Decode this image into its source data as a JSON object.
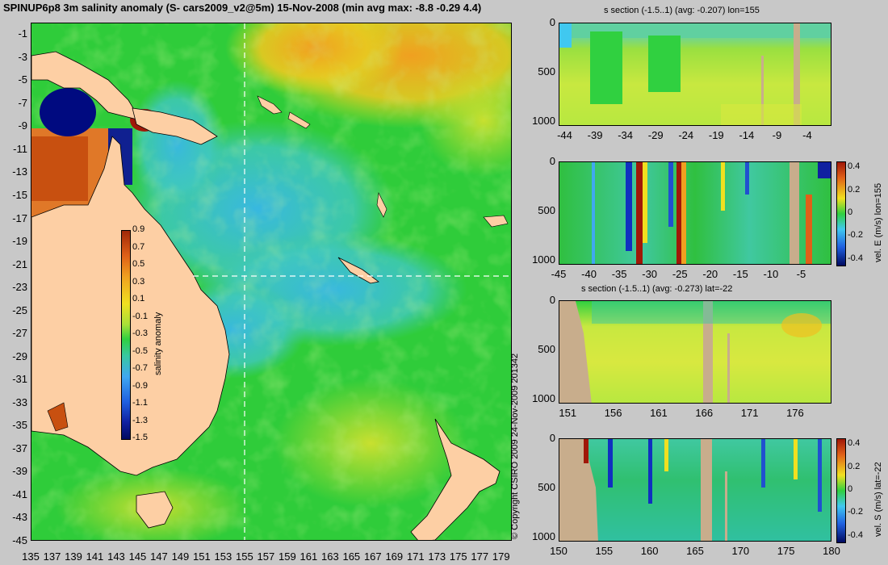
{
  "title": "SPINUP6p8 3m salinity anomaly (S- cars2009_v2@5m) 15-Nov-2008 (min avg max: -8.8 -0.29 4.4)",
  "copyright": "© Copyright CSIRO 2009   24-Nov-2009 201342",
  "colors": {
    "background": "#c8c8c8",
    "land": "#fdcfa4",
    "section_land": "#c8ad8c",
    "ocean_base": "#2fcc3a"
  },
  "chart_data": [
    {
      "type": "heatmap",
      "name": "map",
      "x_ticks": [
        "135",
        "137",
        "139",
        "141",
        "143",
        "145",
        "147",
        "149",
        "151",
        "153",
        "155",
        "157",
        "159",
        "161",
        "163",
        "165",
        "167",
        "169",
        "171",
        "173",
        "175",
        "177",
        "179"
      ],
      "y_ticks": [
        "-1",
        "-3",
        "-5",
        "-7",
        "-9",
        "-11",
        "-13",
        "-15",
        "-17",
        "-19",
        "-21",
        "-23",
        "-25",
        "-27",
        "-29",
        "-31",
        "-33",
        "-35",
        "-37",
        "-39",
        "-41",
        "-43",
        "-45"
      ],
      "xlim": [
        135,
        180
      ],
      "ylim": [
        -45,
        0
      ],
      "section_lon": 155,
      "section_lat": -22,
      "colorbar": {
        "label": "salinity anomaly",
        "ticks": [
          "0.9",
          "0.7",
          "0.5",
          "0.3",
          "0.1",
          "-0.1",
          "-0.3",
          "-0.5",
          "-0.7",
          "-0.9",
          "-1.1",
          "-1.3",
          "-1.5"
        ],
        "range": [
          -1.5,
          0.9
        ]
      }
    },
    {
      "type": "heatmap",
      "name": "s-section-lon155",
      "title": "s section (-1.5..1) (avg: -0.207) lon=155",
      "x_ticks": [
        "-44",
        "-39",
        "-34",
        "-29",
        "-24",
        "-19",
        "-14",
        "-9",
        "-4"
      ],
      "y_ticks": [
        "0",
        "500",
        "1000"
      ],
      "xlim": [
        -45,
        0
      ],
      "ylim": [
        1050,
        0
      ]
    },
    {
      "type": "heatmap",
      "name": "vel-e-section-lon155",
      "x_ticks": [
        "-45",
        "-40",
        "-35",
        "-30",
        "-25",
        "-20",
        "-15",
        "-10",
        "-5"
      ],
      "y_ticks": [
        "0",
        "500",
        "1000"
      ],
      "xlim": [
        -45,
        0
      ],
      "ylim": [
        1050,
        0
      ],
      "colorbar": {
        "label": "vel. E (m/s) lon=155",
        "ticks": [
          "0.4",
          "0.2",
          "0",
          "-0.2",
          "-0.4"
        ],
        "range": [
          -0.45,
          0.45
        ]
      }
    },
    {
      "type": "heatmap",
      "name": "s-section-lat-22",
      "title": "s section (-1.5..1) (avg: -0.273) lat=-22",
      "x_ticks": [
        "151",
        "156",
        "161",
        "166",
        "171",
        "176"
      ],
      "y_ticks": [
        "0",
        "500",
        "1000"
      ],
      "xlim": [
        150,
        180
      ],
      "ylim": [
        1050,
        0
      ]
    },
    {
      "type": "heatmap",
      "name": "vel-s-section-lat-22",
      "x_ticks": [
        "150",
        "155",
        "160",
        "165",
        "170",
        "175",
        "180"
      ],
      "y_ticks": [
        "0",
        "500",
        "1000"
      ],
      "xlim": [
        150,
        180
      ],
      "ylim": [
        1050,
        0
      ],
      "colorbar": {
        "label": "vel. S (m/s) lat=-22",
        "ticks": [
          "0.4",
          "0.2",
          "0",
          "-0.2",
          "-0.4"
        ],
        "range": [
          -0.45,
          0.45
        ]
      }
    }
  ]
}
